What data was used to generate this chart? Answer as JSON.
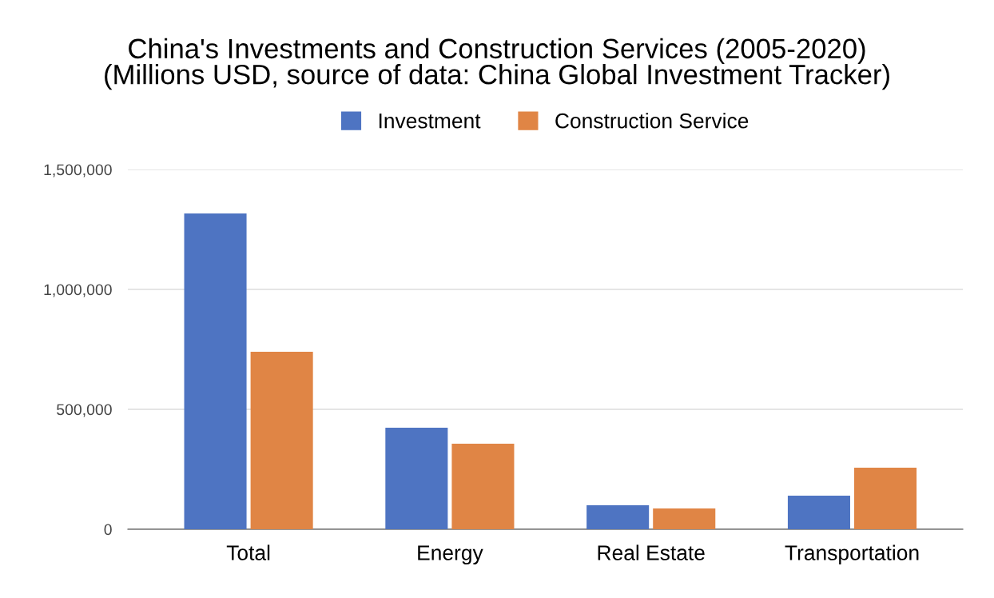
{
  "chart_data": {
    "type": "bar",
    "title": "China's Investments and Construction Services (2005-2020)\n(Millions USD, source of data: China Global Investment Tracker)",
    "categories": [
      "Total",
      "Energy",
      "Real Estate",
      "Transportation"
    ],
    "series": [
      {
        "name": "Investment",
        "color": "#4e74c2",
        "values": [
          1317000,
          423000,
          100000,
          140000
        ]
      },
      {
        "name": "Construction Service",
        "color": "#e08545",
        "values": [
          740000,
          357000,
          87000,
          257000
        ]
      }
    ],
    "ylim": [
      0,
      1500000
    ],
    "yticks": [
      {
        "value": 0,
        "label": "0"
      },
      {
        "value": 500000,
        "label": "500,000"
      },
      {
        "value": 1000000,
        "label": "1,000,000"
      },
      {
        "value": 1500000,
        "label": "1,500,000"
      }
    ],
    "grid": "y",
    "legend": "top"
  }
}
